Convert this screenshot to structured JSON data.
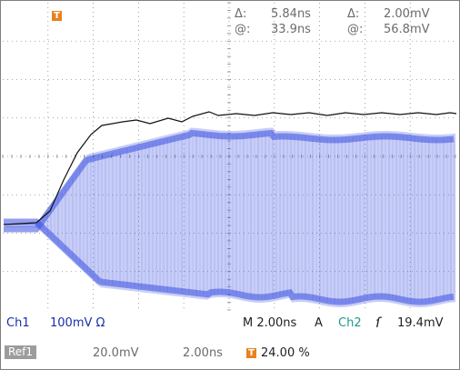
{
  "readout": {
    "delta_time_symbol": "Δ:",
    "delta_time": "5.84ns",
    "at_time_symbol": "@:",
    "at_time": "33.9ns",
    "delta_volt_symbol": "Δ:",
    "delta_volt": "2.00mV",
    "at_volt_symbol": "@:",
    "at_volt": "56.8mV"
  },
  "markers": {
    "trigger_position": "T",
    "trigger_status": "T"
  },
  "status": {
    "ch1_label": "Ch1",
    "ch1_scale": "100mV Ω",
    "timebase": "M 2.00ns",
    "acq_mode": "A",
    "trigger_source": "Ch2",
    "trigger_slope_glyph": "ſ",
    "trigger_level": "19.4mV",
    "ref_label": "Ref1",
    "ref_scale": "20.0mV",
    "ref_time": "2.00ns",
    "trigger_percent": "24.00 %"
  },
  "colors": {
    "graticule": "#8c8c8c",
    "eye_trace": "#3b50e0",
    "ref_trace": "#111111",
    "marker": "#e8821e",
    "ch1": "#1a2fa8",
    "ch2": "#1f9a8a"
  },
  "icons": {
    "trigger_marker": "orange-T-square-icon",
    "slope": "rising-edge-icon"
  }
}
